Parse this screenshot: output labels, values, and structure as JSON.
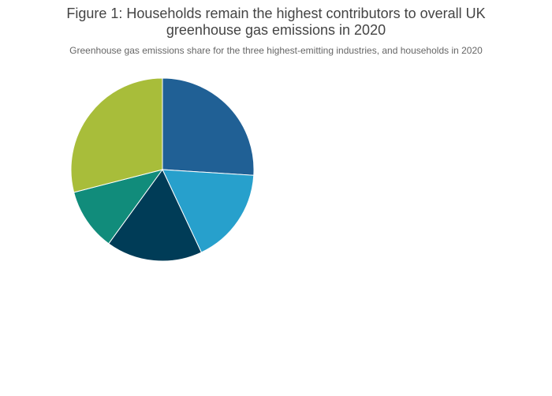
{
  "chart_data": {
    "type": "pie",
    "title": "Figure 1: Households remain the highest contributors to overall UK",
    "title_line2": "greenhouse gas emissions in 2020",
    "subtitle": "Greenhouse gas emissions share for the three highest-emitting industries, and households in 2020",
    "values": [
      26,
      17,
      17,
      11,
      29
    ],
    "colors": [
      "#206095",
      "#27a0cc",
      "#003c57",
      "#118c7b",
      "#a8bd3a"
    ]
  }
}
